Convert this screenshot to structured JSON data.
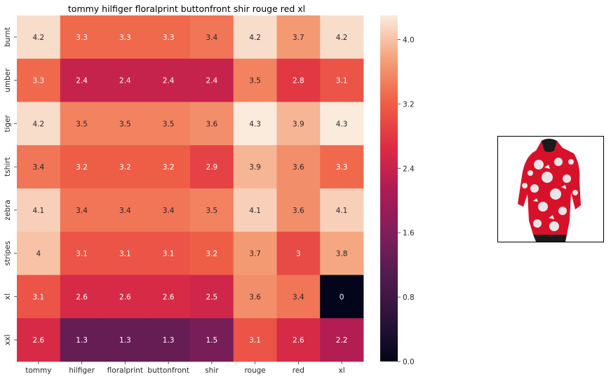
{
  "chart_data": {
    "type": "heatmap",
    "title": "tommy hilfiger floralprint buttonfront shir rouge red xl",
    "x_labels": [
      "tommy",
      "hilfiger",
      "floralprint",
      "buttonfront",
      "shir",
      "rouge",
      "red",
      "xl"
    ],
    "y_labels": [
      "burnt",
      "umber",
      "tiger",
      "tshirt",
      "zebra",
      "stripes",
      "xl",
      "xxl"
    ],
    "values": [
      [
        4.2,
        3.3,
        3.3,
        3.3,
        3.4,
        4.2,
        3.7,
        4.2
      ],
      [
        3.3,
        2.4,
        2.4,
        2.4,
        2.4,
        3.5,
        2.8,
        3.1
      ],
      [
        4.2,
        3.5,
        3.5,
        3.5,
        3.6,
        4.3,
        3.9,
        4.3
      ],
      [
        3.4,
        3.2,
        3.2,
        3.2,
        2.9,
        3.9,
        3.6,
        3.3
      ],
      [
        4.1,
        3.4,
        3.4,
        3.4,
        3.5,
        4.1,
        3.6,
        4.1
      ],
      [
        4,
        3.1,
        3.1,
        3.1,
        3.2,
        3.7,
        3,
        3.8
      ],
      [
        3.1,
        2.6,
        2.6,
        2.6,
        2.5,
        3.6,
        3.4,
        0
      ],
      [
        2.6,
        1.3,
        1.3,
        1.3,
        1.5,
        3.1,
        2.6,
        2.2
      ]
    ],
    "value_labels": [
      [
        "4.2",
        "3.3",
        "3.3",
        "3.3",
        "3.4",
        "4.2",
        "3.7",
        "4.2"
      ],
      [
        "3.3",
        "2.4",
        "2.4",
        "2.4",
        "2.4",
        "3.5",
        "2.8",
        "3.1"
      ],
      [
        "4.2",
        "3.5",
        "3.5",
        "3.5",
        "3.6",
        "4.3",
        "3.9",
        "4.3"
      ],
      [
        "3.4",
        "3.2",
        "3.2",
        "3.2",
        "2.9",
        "3.9",
        "3.6",
        "3.3"
      ],
      [
        "4.1",
        "3.4",
        "3.4",
        "3.4",
        "3.5",
        "4.1",
        "3.6",
        "4.1"
      ],
      [
        "4",
        "3.1",
        "3.1",
        "3.1",
        "3.2",
        "3.7",
        "3",
        "3.8"
      ],
      [
        "3.1",
        "2.6",
        "2.6",
        "2.6",
        "2.5",
        "3.6",
        "3.4",
        "0"
      ],
      [
        "2.6",
        "1.3",
        "1.3",
        "1.3",
        "1.5",
        "3.1",
        "2.6",
        "2.2"
      ]
    ],
    "colorbar": {
      "range": [
        0,
        4.3
      ],
      "ticks": [
        0,
        0.8,
        1.6,
        2.4,
        3.2,
        4.0
      ],
      "tick_labels": [
        "0.0",
        "0.8",
        "1.6",
        "2.4",
        "3.2",
        "4.0"
      ],
      "colormap": "rocket"
    },
    "xlabel": "",
    "ylabel": ""
  },
  "product_image": {
    "icon": "floral-print-shirt-photo",
    "colors": {
      "primary": "#d8112a",
      "secondary": "#e8e8e8",
      "dark": "#1a1a1a"
    }
  }
}
